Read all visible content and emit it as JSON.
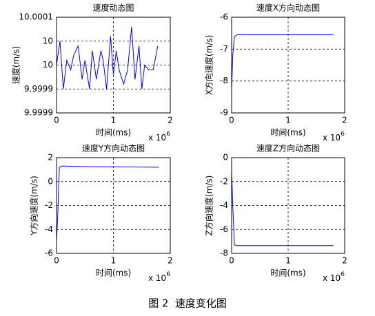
{
  "chart_data": [
    {
      "type": "line",
      "title": "速度动态图",
      "xlabel": "时间(ms)",
      "ylabel": "速度(m/s)",
      "x_multiplier": "x 10",
      "x_exponent": "6",
      "x": [
        0,
        60000,
        120000,
        180000,
        250000,
        300000,
        380000,
        450000,
        500000,
        580000,
        630000,
        700000,
        780000,
        820000,
        880000,
        950000,
        1000000,
        1050000,
        1100000,
        1180000,
        1250000,
        1320000,
        1380000,
        1450000,
        1500000,
        1550000,
        1620000,
        1700000,
        1780000
      ],
      "values": [
        10.0,
        10.00005,
        9.99995,
        10.00001,
        9.99999,
        10.00002,
        10.00004,
        9.99997,
        10.00001,
        9.99995,
        10.00003,
        9.99997,
        10.00003,
        10.00001,
        9.99995,
        10.00006,
        9.99998,
        10.00003,
        9.99999,
        9.99996,
        9.99999,
        10.00008,
        9.99997,
        10.00004,
        9.99995,
        10.0,
        9.99999,
        9.99999,
        10.00004
      ],
      "color": "#0000ff",
      "grid": true,
      "xlim": [
        0,
        2000000
      ],
      "xticks": [
        0,
        {
          "value": 1000000,
          "label": "1"
        },
        {
          "value": 2000000,
          "label": "2"
        }
      ],
      "ylim": [
        9.9999,
        10.0001
      ],
      "yticks": [
        {
          "value": 9.9999,
          "label": "9.9999"
        },
        {
          "value": 9.99995,
          "label": "9.9999"
        },
        10,
        {
          "value": 10.00005,
          "label": "10"
        },
        10.0001
      ]
    },
    {
      "type": "line",
      "title": "速度X方向动态图",
      "xlabel": "时间(ms)",
      "ylabel": "X方向速度(m/s)",
      "x_multiplier": "x 10",
      "x_exponent": "6",
      "x": [
        0,
        20000,
        50000,
        100000,
        1800000
      ],
      "values": [
        -8.3,
        -7.2,
        -6.6,
        -6.55,
        -6.55
      ],
      "color": "#0000ff",
      "grid": true,
      "xlim": [
        0,
        2000000
      ],
      "xticks": [
        0,
        {
          "value": 1000000,
          "label": "1"
        },
        {
          "value": 2000000,
          "label": "2"
        }
      ],
      "ylim": [
        -9,
        -6
      ],
      "yticks": [
        -9,
        -8,
        -7,
        -6
      ]
    },
    {
      "type": "line",
      "title": "速度Y方向动态图",
      "xlabel": "时间(ms)",
      "ylabel": "Y方向速度(m/s)",
      "x_multiplier": "x 10",
      "x_exponent": "6",
      "x": [
        0,
        20000,
        50000,
        100000,
        500000,
        1800000
      ],
      "values": [
        -5,
        -3,
        1.2,
        1.3,
        1.25,
        1.2
      ],
      "color": "#0000ff",
      "grid": true,
      "xlim": [
        0,
        2000000
      ],
      "xticks": [
        0,
        {
          "value": 1000000,
          "label": "1"
        },
        {
          "value": 2000000,
          "label": "2"
        }
      ],
      "ylim": [
        -6,
        2
      ],
      "yticks": [
        -6,
        -4,
        -2,
        0,
        2
      ]
    },
    {
      "type": "line",
      "title": "速度Z方向动态图",
      "xlabel": "时间(ms)",
      "ylabel": "Z方向速度(m/s)",
      "x_multiplier": "x 10",
      "x_exponent": "6",
      "x": [
        0,
        20000,
        50000,
        100000,
        1800000
      ],
      "values": [
        -1,
        -4,
        -7.3,
        -7.35,
        -7.35
      ],
      "color": "#0000ff",
      "grid": true,
      "xlim": [
        0,
        2000000
      ],
      "xticks": [
        0,
        {
          "value": 1000000,
          "label": "1"
        },
        {
          "value": 2000000,
          "label": "2"
        }
      ],
      "ylim": [
        -8,
        0
      ],
      "yticks": [
        -8,
        -6,
        -4,
        -2,
        0
      ]
    }
  ],
  "caption": "图 2  速度变化图"
}
